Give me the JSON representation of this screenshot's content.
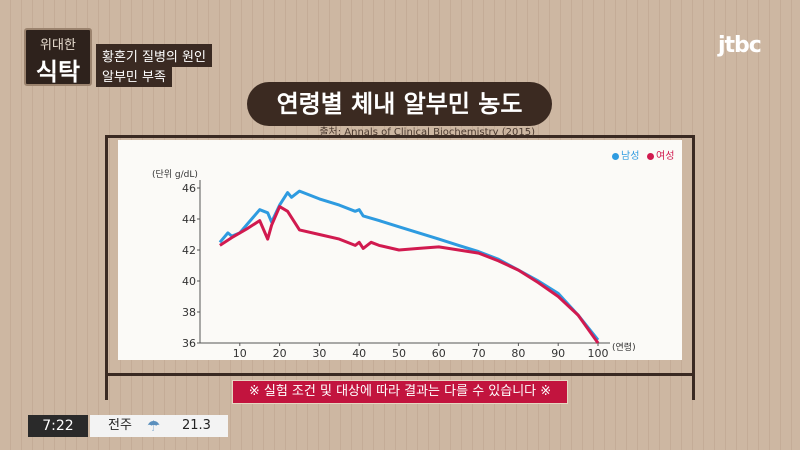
{
  "show": {
    "title_top": "위대한",
    "title_bottom": "식탁",
    "topic": "황혼기 질병의 원인",
    "subtopic": "알부민 부족",
    "channel": "jtbc"
  },
  "slide": {
    "title": "연령별 체내 알부민 농도",
    "source": "출처: Annals of Clinical Biochemistry (2015)",
    "notice": "※ 실험 조건 및 대상에 따라 결과는 다를 수 있습니다 ※"
  },
  "status_bar": {
    "time": "7:22",
    "city": "전주",
    "weather_icon": "cloud-rain-icon",
    "temperature": "21.3"
  },
  "chart_data": {
    "type": "line",
    "y_unit_label": "(단위 g/dL)",
    "x_unit_label": "(연령)",
    "xlim": [
      0,
      100
    ],
    "ylim": [
      36,
      46
    ],
    "x_ticks": [
      10,
      20,
      30,
      40,
      50,
      60,
      70,
      80,
      90,
      100
    ],
    "y_ticks": [
      36,
      38,
      40,
      42,
      44,
      46
    ],
    "series": [
      {
        "name": "남성",
        "color": "#2e9be0",
        "x": [
          5,
          7,
          8,
          10,
          13,
          15,
          17,
          18,
          20,
          22,
          23,
          25,
          30,
          35,
          39,
          40,
          41,
          45,
          50,
          55,
          60,
          65,
          70,
          75,
          80,
          85,
          90,
          95,
          100
        ],
        "y": [
          42.5,
          43.1,
          42.9,
          43.1,
          44.0,
          44.6,
          44.4,
          43.8,
          44.9,
          45.7,
          45.4,
          45.8,
          45.3,
          44.9,
          44.5,
          44.6,
          44.2,
          43.9,
          43.5,
          43.1,
          42.7,
          42.3,
          41.9,
          41.4,
          40.7,
          40.0,
          39.2,
          37.8,
          36.2
        ]
      },
      {
        "name": "여성",
        "color": "#d11a4f",
        "x": [
          5,
          8,
          10,
          12,
          15,
          17,
          18,
          20,
          22,
          23,
          25,
          30,
          35,
          39,
          40,
          41,
          43,
          45,
          50,
          55,
          60,
          65,
          70,
          75,
          80,
          85,
          90,
          95,
          100
        ],
        "y": [
          42.3,
          42.8,
          43.1,
          43.4,
          43.9,
          42.7,
          43.6,
          44.8,
          44.5,
          44.1,
          43.3,
          43.0,
          42.7,
          42.3,
          42.5,
          42.1,
          42.5,
          42.3,
          42.0,
          42.1,
          42.2,
          42.0,
          41.8,
          41.3,
          40.7,
          39.9,
          39.0,
          37.8,
          36.0
        ]
      }
    ]
  }
}
